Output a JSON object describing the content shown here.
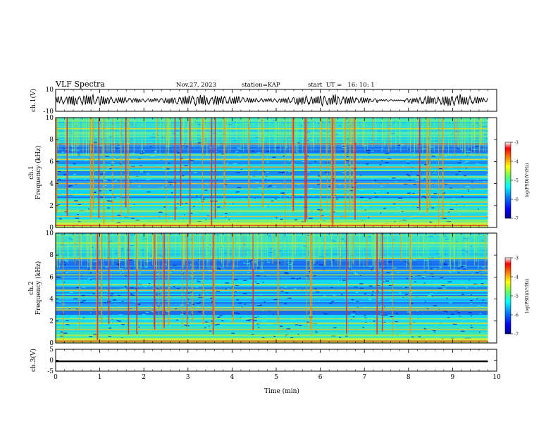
{
  "header": {
    "title": "VLF Spectra",
    "date": "Nov.27, 2023",
    "station": "station=KAP",
    "start_ut": "start  UT =   16: 10: 1"
  },
  "colors": {
    "waveform": "#000000",
    "frame": "#000000",
    "colormap": [
      "#00008c",
      "#0000ff",
      "#0090ff",
      "#00ffff",
      "#60ff60",
      "#ffff00",
      "#ff8000",
      "#ff0000",
      "#ffffff"
    ]
  },
  "chart_data": [
    {
      "type": "line",
      "ylabel": "ch.1(V)",
      "ylim": [
        -10,
        10
      ],
      "yticks": [
        10,
        -10
      ],
      "xlim": [
        0,
        10
      ],
      "description_series": "oscillating waveform between about -5 and +5 V"
    },
    {
      "type": "heatmap",
      "ylabel_lines": [
        "ch.1",
        "Frequency (kHz)"
      ],
      "ylim": [
        0,
        10
      ],
      "yticks": [
        0,
        2,
        4,
        6,
        8,
        10
      ],
      "xlim": [
        0,
        10
      ],
      "data_extent_min": 9.8,
      "bands_khz": [
        0.3,
        0.6,
        1.0,
        1.5,
        2.0,
        2.3,
        3.0,
        3.5,
        4.0,
        4.6,
        5.2,
        5.5,
        6.2,
        6.6,
        7.6,
        9.0
      ],
      "colorbar": {
        "label": "log(PSD)(V²/Hz)",
        "range": [
          -7,
          -3
        ],
        "ticks": [
          -3,
          -4,
          -5,
          -6,
          -7
        ]
      }
    },
    {
      "type": "heatmap",
      "ylabel_lines": [
        "ch.2",
        "Frequency (kHz)"
      ],
      "ylim": [
        0,
        10
      ],
      "yticks": [
        0,
        2,
        4,
        6,
        8,
        10
      ],
      "xlim": [
        0,
        10
      ],
      "data_extent_min": 9.8,
      "bands_khz": [
        0.3,
        0.7,
        1.2,
        1.8,
        2.2,
        3.0,
        3.2,
        4.2,
        4.8,
        5.3,
        6.2,
        6.6,
        7.7,
        9.1
      ],
      "colorbar": {
        "label": "log(PSD)(V²/Hz)",
        "range": [
          -7,
          -3
        ],
        "ticks": [
          -3,
          -4,
          -5,
          -6,
          -7
        ]
      }
    },
    {
      "type": "line",
      "ylabel": "ch.3(V)",
      "ylim": [
        -5,
        5
      ],
      "yticks": [
        5,
        0,
        -5
      ],
      "xlim": [
        0,
        10
      ],
      "xticks": [
        0,
        1,
        2,
        3,
        4,
        5,
        6,
        7,
        8,
        9,
        10
      ],
      "xlabel": "Time (min)",
      "signal_level_v": -0.5,
      "signal_band_v": [
        -0.9,
        -0.1
      ]
    }
  ]
}
